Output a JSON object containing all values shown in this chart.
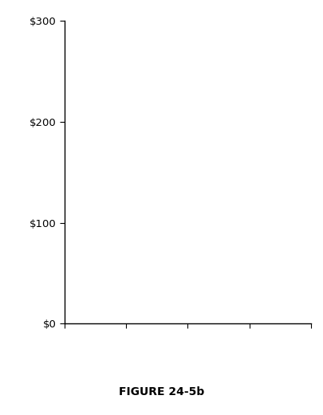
{
  "title": "FIGURE 24-5b",
  "yticks": [
    0,
    100,
    200,
    300
  ],
  "ytick_labels": [
    "$0",
    "$100",
    "$200",
    "$300"
  ],
  "ylim": [
    0,
    300
  ],
  "xlim": [
    0,
    4
  ],
  "xticks": [
    0,
    1,
    2,
    3,
    4
  ],
  "background_color": "#ffffff",
  "axis_color": "#000000",
  "title_fontsize": 10,
  "tick_fontsize": 9.5,
  "figsize": [
    4.06,
    5.21
  ],
  "dpi": 100
}
